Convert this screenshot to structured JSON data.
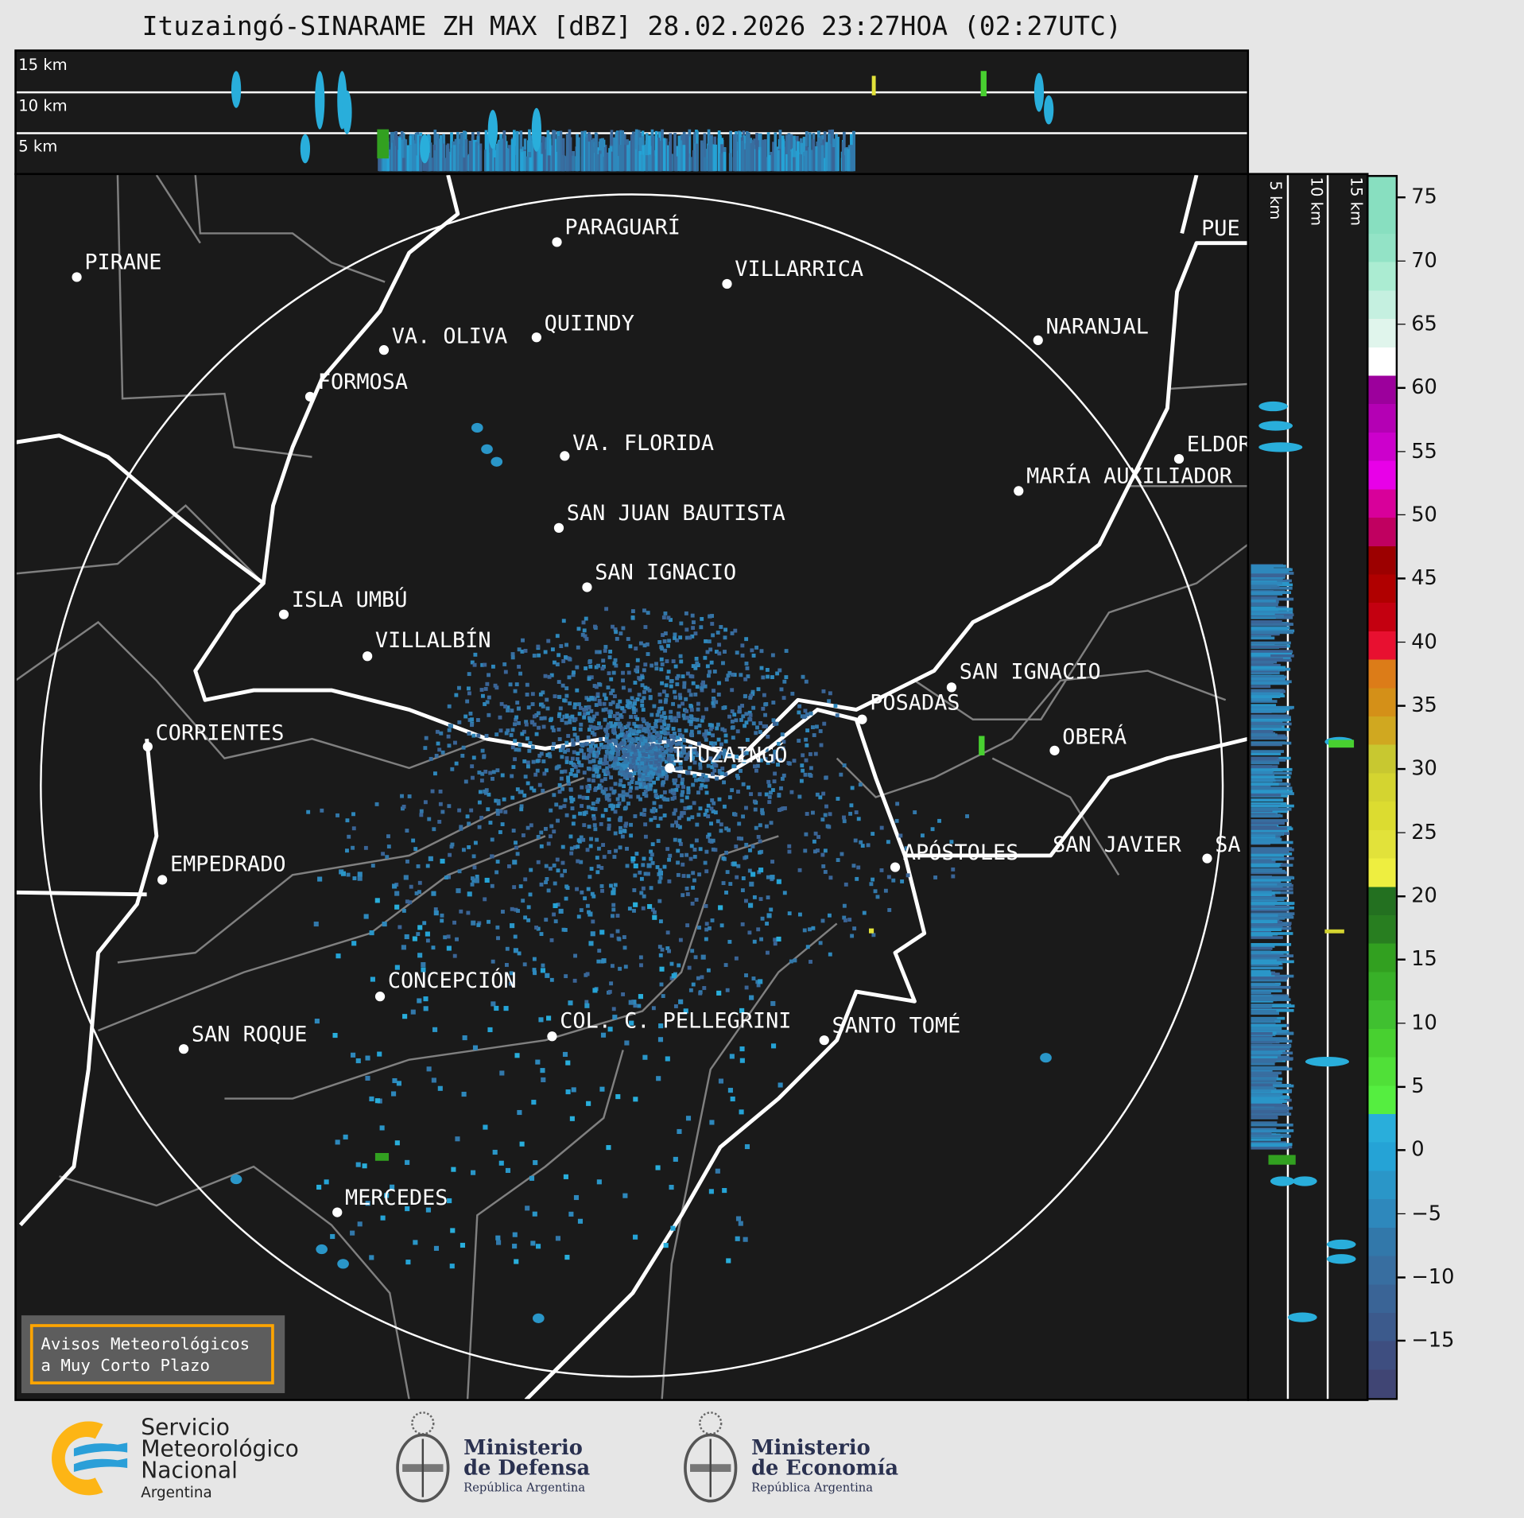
{
  "title": "Ituzaingó-SINARAME ZH MAX [dBZ] 28.02.2026 23:27HOA (02:27UTC)",
  "cross_section_top": {
    "height_labels": [
      "15 km",
      "10 km",
      "5 km"
    ]
  },
  "cross_section_side": {
    "height_labels": [
      "5 km",
      "10 km",
      "15 km"
    ]
  },
  "map": {
    "cities": [
      "PARAGUARÍ",
      "VILLARRICA",
      "PIRANE",
      "QUIINDY",
      "VA. OLIVA",
      "FORMOSA",
      "VA. FLORIDA",
      "SAN JUAN BAUTISTA",
      "SAN IGNACIO",
      "ISLA UMBÚ",
      "VILLALBÍN",
      "CORRIENTES",
      "ITUZAINGÓ",
      "POSADAS",
      "SAN IGNACIO",
      "OBERÁ",
      "NARANJAL",
      "ELDOR",
      "MARÍA AUXILIADOR",
      "PUE",
      "SAN JAVIER",
      "SA",
      "APÓSTOLES",
      "EMPEDRADO",
      "CONCEPCIÓN",
      "COL. C. PELLEGRINI",
      "SANTO TOMÉ",
      "SAN ROQUE",
      "MERCEDES"
    ],
    "range_ring_color": "#ffffff",
    "background_color": "#1a1a1a"
  },
  "colorbar": {
    "unit": "dBZ",
    "range": [
      -19.4,
      76.7
    ],
    "tick_labels": [
      "75",
      "70",
      "65",
      "60",
      "55",
      "50",
      "45",
      "40",
      "35",
      "30",
      "25",
      "20",
      "15",
      "10",
      "5",
      "0",
      "−5",
      "−10",
      "−15"
    ],
    "colors_top_to_bottom": [
      "#88dfc0",
      "#88dfc0",
      "#93e3c6",
      "#abecd2",
      "#c5f0e0",
      "#e0f5ec",
      "#ffffff",
      "#9c009c",
      "#b400b4",
      "#cc00cc",
      "#e800e8",
      "#d8009a",
      "#c00060",
      "#9c0000",
      "#b00000",
      "#c40010",
      "#e81030",
      "#dc7c18",
      "#d49018",
      "#d0a820",
      "#c8c830",
      "#d4d430",
      "#dcdc30",
      "#e2e23a",
      "#eeee40",
      "#237020",
      "#287e20",
      "#32a020",
      "#38b028",
      "#40c030",
      "#48d030",
      "#50e038",
      "#55ee40",
      "#29aedb",
      "#25a3d6",
      "#2a96c8",
      "#2e88bc",
      "#3278aa",
      "#386ea0",
      "#3a6496",
      "#3c5a8c",
      "#3e4e80",
      "#404574"
    ]
  },
  "warning_box": {
    "line1": "Avisos Meteorológicos",
    "line2": "a Muy Corto Plazo",
    "border_color": "#ffa500"
  },
  "logos": {
    "smn": {
      "line1": "Servicio",
      "line2": "Meteorológico",
      "line3": "Nacional",
      "line4": "Argentina"
    },
    "defensa": {
      "line1": "Ministerio",
      "line2": "de Defensa",
      "line3": "República Argentina"
    },
    "economia": {
      "line1": "Ministerio",
      "line2": "de Economía",
      "line3": "República Argentina"
    }
  }
}
